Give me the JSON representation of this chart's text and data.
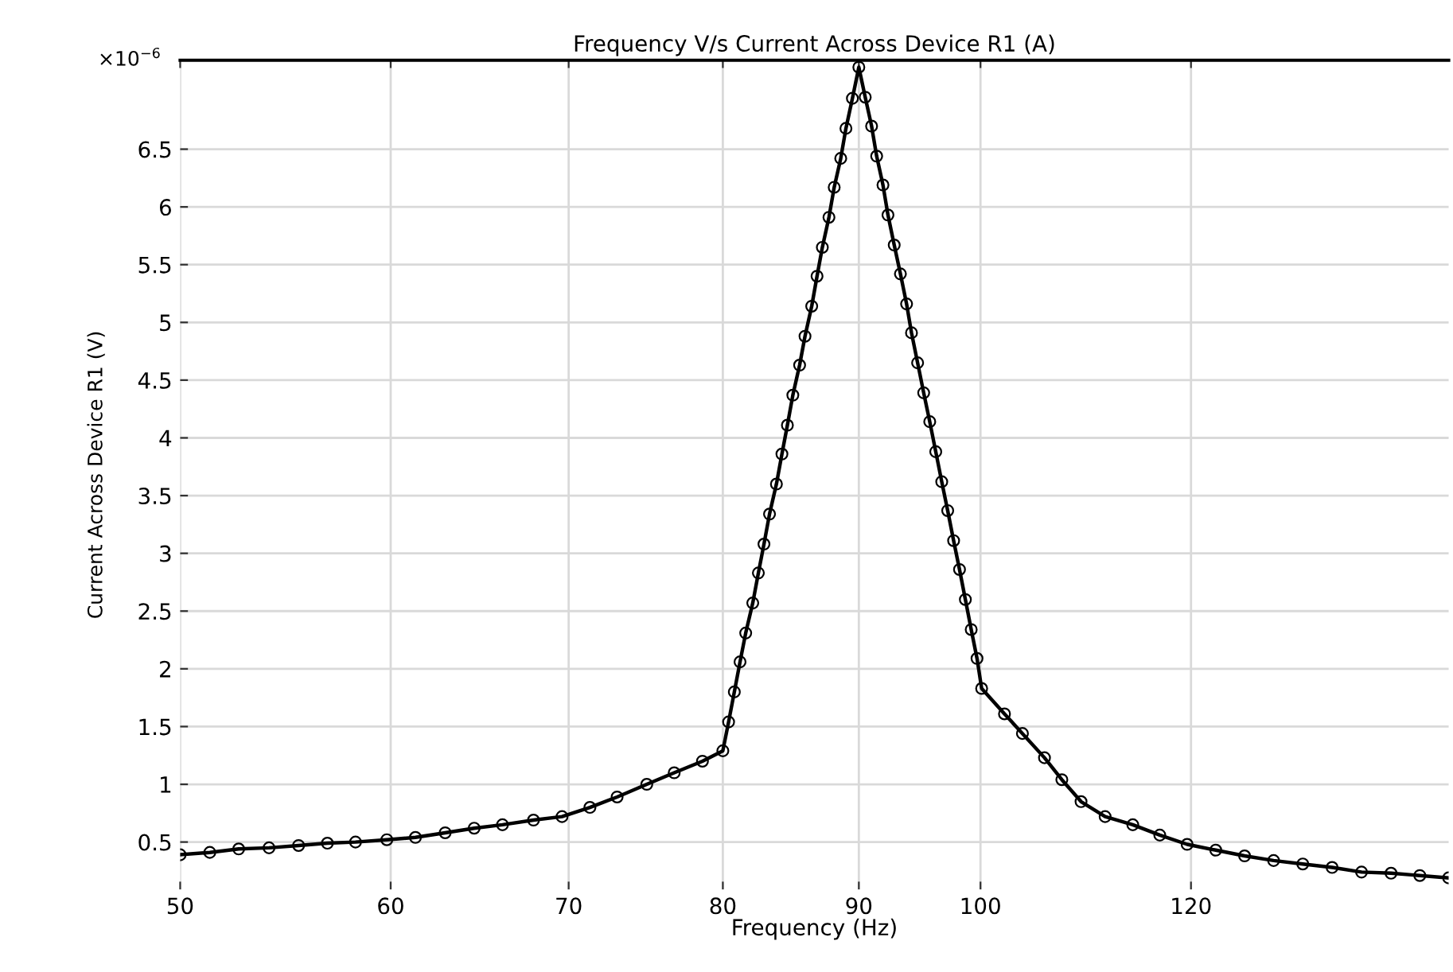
{
  "chart_data": {
    "type": "line",
    "title": "Frequency V/s Current Across Device R1 (A)",
    "xlabel": "Frequency (Hz)",
    "ylabel": "Current Across Device R1 (V)",
    "annotations": [
      "×10$^{−6}$"
    ],
    "log": "x",
    "xlim": [
      50,
      150
    ],
    "xticks": [
      50,
      60,
      70,
      80,
      90,
      100,
      120
    ],
    "ylim": [
      0.09,
      7.27
    ],
    "yticks": [
      0.5,
      1,
      1.5,
      2,
      2.5,
      3,
      3.5,
      4,
      4.5,
      5,
      5.5,
      6,
      6.5
    ],
    "grid": true,
    "marker": "circle",
    "line_style": "solid",
    "series": [
      {
        "color": "#000000",
        "x": [
          50,
          51.3,
          52.6,
          54.0,
          55.4,
          56.8,
          58.2,
          59.8,
          61.3,
          62.9,
          64.5,
          66.1,
          67.9,
          69.6,
          71.3,
          73.0,
          74.9,
          76.7,
          78.6,
          80.0,
          80.4,
          80.8,
          81.2,
          81.6,
          82.1,
          82.5,
          82.9,
          83.3,
          83.8,
          84.2,
          84.6,
          85.0,
          85.5,
          85.9,
          86.4,
          86.8,
          87.2,
          87.7,
          88.1,
          88.6,
          89.0,
          89.5,
          90.0,
          90.5,
          91.0,
          91.4,
          91.9,
          92.3,
          92.8,
          93.3,
          93.8,
          94.2,
          94.7,
          95.2,
          95.7,
          96.2,
          96.7,
          97.2,
          97.7,
          98.2,
          98.7,
          99.2,
          99.7,
          100.1,
          102.1,
          103.7,
          105.7,
          107.3,
          109.1,
          111.4,
          114.1,
          116.8,
          119.6,
          122.6,
          125.7,
          128.9,
          132.2,
          135.6,
          139.1,
          142.7,
          146.3,
          150
        ],
        "values": [
          0.39,
          0.41,
          0.44,
          0.45,
          0.47,
          0.49,
          0.5,
          0.52,
          0.54,
          0.58,
          0.62,
          0.65,
          0.69,
          0.72,
          0.8,
          0.89,
          1.0,
          1.1,
          1.2,
          1.29,
          1.54,
          1.8,
          2.06,
          2.31,
          2.57,
          2.83,
          3.08,
          3.34,
          3.6,
          3.86,
          4.11,
          4.37,
          4.63,
          4.88,
          5.14,
          5.4,
          5.65,
          5.91,
          6.17,
          6.42,
          6.68,
          6.94,
          7.21,
          6.95,
          6.7,
          6.44,
          6.19,
          5.93,
          5.67,
          5.42,
          5.16,
          4.91,
          4.65,
          4.39,
          4.14,
          3.88,
          3.62,
          3.37,
          3.11,
          2.86,
          2.6,
          2.34,
          2.09,
          1.83,
          1.61,
          1.44,
          1.23,
          1.04,
          0.85,
          0.72,
          0.65,
          0.56,
          0.48,
          0.43,
          0.38,
          0.34,
          0.31,
          0.28,
          0.24,
          0.23,
          0.21,
          0.19
        ]
      }
    ]
  }
}
